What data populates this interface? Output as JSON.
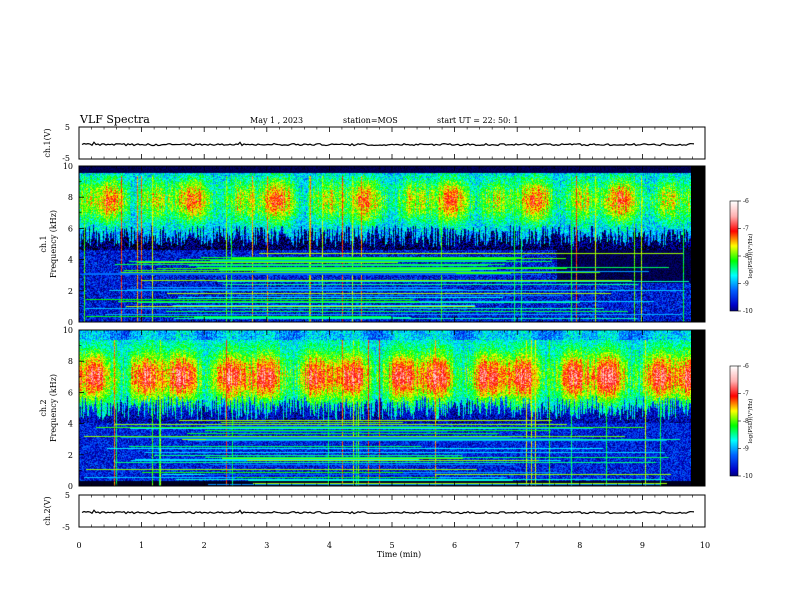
{
  "header": {
    "title": "VLF Spectra",
    "date": "May 1  , 2023",
    "station": "station=MOS",
    "start_ut": "start  UT  =   22: 50: 1"
  },
  "chart_data": [
    {
      "type": "line",
      "panel": "ch1-waveform",
      "ylabel": "ch.1(V)",
      "yticks": [
        "5",
        "-5"
      ],
      "ylim": [
        -5,
        5
      ],
      "series": [
        {
          "values_note_value": "~ -0.5 flat",
          "level": -0.5
        }
      ]
    },
    {
      "type": "heatmap",
      "panel": "ch1-spectrogram",
      "ylabel_top": "ch.1",
      "ylabel": "Frequency (kHz)",
      "yticks": [
        "0",
        "2",
        "4",
        "6",
        "8",
        "10"
      ],
      "ylim": [
        0,
        10
      ],
      "colorbar": {
        "label": "log(PSD)(V²/Hz)",
        "ticks": [
          "-6",
          "-7",
          "-8",
          "-9",
          "-10"
        ],
        "range": [
          -10,
          -6
        ]
      }
    },
    {
      "type": "heatmap",
      "panel": "ch2-spectrogram",
      "ylabel_top": "ch.2",
      "ylabel": "Frequency (kHz)",
      "yticks": [
        "0",
        "2",
        "4",
        "6",
        "8",
        "10"
      ],
      "ylim": [
        0,
        10
      ],
      "colorbar": {
        "label": "log(PSD)(V²/Hz)",
        "ticks": [
          "-6",
          "-7",
          "-8",
          "-9",
          "-10"
        ],
        "range": [
          -10,
          -6
        ]
      }
    },
    {
      "type": "line",
      "panel": "ch2-waveform",
      "ylabel": "ch.2(V)",
      "yticks": [
        "5",
        "-5"
      ],
      "ylim": [
        -5,
        5
      ],
      "series": [
        {
          "level": -0.5
        }
      ]
    }
  ],
  "xaxis": {
    "label": "Time (min)",
    "ticks": [
      "0",
      "1",
      "2",
      "3",
      "4",
      "5",
      "6",
      "7",
      "8",
      "9",
      "10"
    ],
    "xlim": [
      0,
      10
    ],
    "data_end": 9.85
  },
  "colors": {
    "scale": [
      "#000000",
      "#0000c8",
      "#0060ff",
      "#00ffff",
      "#00ff00",
      "#ffff00",
      "#ff0000",
      "#ffb0b0",
      "#ffffff"
    ]
  }
}
